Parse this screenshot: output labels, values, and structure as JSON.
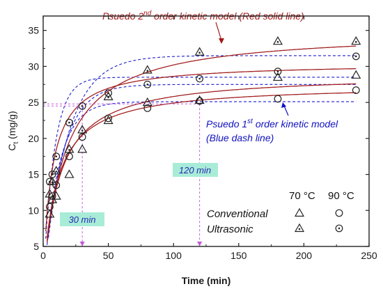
{
  "chart_data": {
    "type": "scatter",
    "title": "",
    "xlabel": "Time (min)",
    "ylabel": "C",
    "ylabel_sub": "t",
    "ylabel_unit": " (mg/g)",
    "xlim": [
      0,
      250
    ],
    "ylim": [
      5,
      37
    ],
    "x_ticks": [
      0,
      50,
      100,
      150,
      200,
      250
    ],
    "y_ticks": [
      5,
      10,
      15,
      20,
      25,
      30,
      35
    ],
    "series": [
      {
        "marker": "triangle-open",
        "x": [
          5,
          7,
          10,
          20,
          30,
          50,
          80,
          120,
          180,
          240
        ],
        "y": [
          9.5,
          11.5,
          12,
          15,
          18.5,
          22.5,
          25,
          25.3,
          28.5,
          28.8
        ]
      },
      {
        "marker": "triangle-dot",
        "x": [
          5,
          7,
          10,
          20,
          30,
          50,
          80,
          120,
          180,
          240
        ],
        "y": [
          12.3,
          14,
          15.5,
          18.5,
          21.2,
          25.8,
          29.5,
          32,
          33.5,
          33.5
        ]
      },
      {
        "marker": "circle-open",
        "x": [
          5,
          7,
          10,
          20,
          30,
          50,
          80,
          120,
          180,
          240
        ],
        "y": [
          10.5,
          12,
          13.5,
          17.5,
          20.2,
          22.8,
          24.2,
          25.2,
          25.5,
          26.7
        ]
      },
      {
        "marker": "circle-dot",
        "x": [
          5,
          7,
          10,
          20,
          30,
          50,
          80,
          120,
          180,
          240
        ],
        "y": [
          14,
          15,
          17.5,
          22.2,
          24.5,
          26.3,
          27.5,
          28.3,
          29.3,
          31.4
        ]
      }
    ],
    "pfo_fits": [
      {
        "qe": 25.1,
        "k": 0.085
      },
      {
        "qe": 31.5,
        "k": 0.055
      },
      {
        "qe": 27.5,
        "k": 0.07
      },
      {
        "qe": 28.5,
        "k": 0.12
      }
    ],
    "pso_fits": [
      {
        "qe": 27.5,
        "k": 0.0035
      },
      {
        "qe": 35.0,
        "k": 0.0018
      },
      {
        "qe": 29.0,
        "k": 0.0028
      },
      {
        "qe": 30.5,
        "k": 0.005
      }
    ],
    "guide_lines": [
      {
        "x": 30,
        "y": 24.5
      },
      {
        "x": 120,
        "y": 24.8
      }
    ],
    "annotations": {
      "pso_label_pre": "Psuedo 2",
      "pso_label_sup": "nd",
      "pso_label_post": " order kinetic model (Red solid line)",
      "pfo_label_pre": "Psuedo 1",
      "pfo_label_sup": "st",
      "pfo_label_post": " order kinetic model",
      "pfo_label_line2": "(Blue dash line)",
      "box_30": "30 min",
      "box_120": "120 min"
    },
    "legend": {
      "col1": "70 °C",
      "col2": "90 °C",
      "row1": "Conventional",
      "row2": "Ultrasonic"
    },
    "colors": {
      "pso": "#a32020",
      "pfo": "#1a1ad0",
      "guide": "#c05ad8",
      "box": "#a8ecd8",
      "arrow_red": "#a01818",
      "arrow_blue": "#1010c0",
      "marker": "#222222"
    }
  }
}
